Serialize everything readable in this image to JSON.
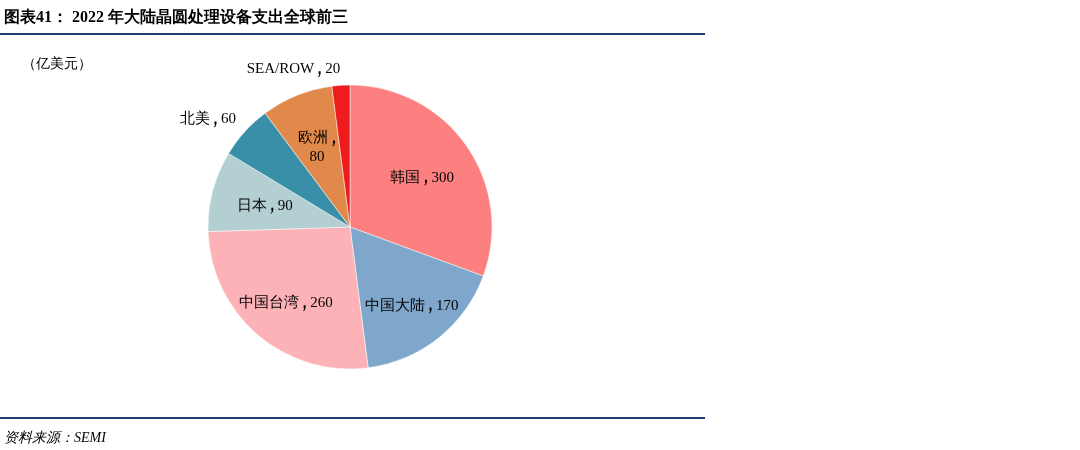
{
  "chart_data": {
    "type": "pie",
    "title": "图表41： 2022 年大陆晶圆处理设备支出全球前三",
    "subtitle": "（亿美元）",
    "annotations": [
      "资料来源：SEMI"
    ],
    "categories": [
      "韩国",
      "中国大陆",
      "中国台湾",
      "日本",
      "北美",
      "欧洲",
      "SEA/ROW"
    ],
    "values": [
      300,
      170,
      260,
      90,
      60,
      80,
      20
    ],
    "colors": [
      "#fc8080",
      "#7fa7cb",
      "#fdb2b7",
      "#b4cfd2",
      "#3a8fa8",
      "#e0894a",
      "#ee1c1c"
    ],
    "data_labels": true
  }
}
